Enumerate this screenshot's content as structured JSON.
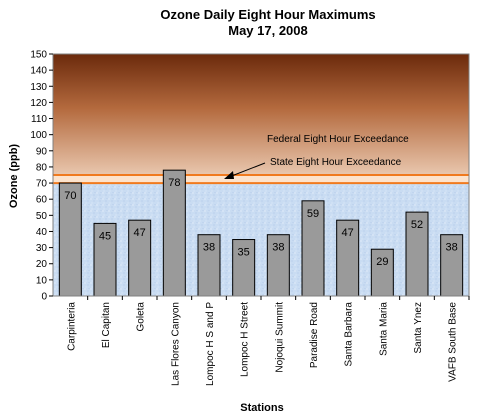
{
  "chart_data": {
    "type": "bar",
    "title": "Ozone Daily Eight Hour Maximums",
    "subtitle": "May 17, 2008",
    "xlabel": "Stations",
    "ylabel": "Ozone (ppb)",
    "ylim": [
      0,
      150
    ],
    "ytick_step": 10,
    "categories": [
      "Carpinteria",
      "El Capitan",
      "Goleta",
      "Las Flores Canyon",
      "Lompoc H S and P",
      "Lompoc H Street",
      "Nojoqui Summit",
      "Paradise Road",
      "Santa Barbara",
      "Santa Maria",
      "Santa Ynez",
      "VAFB South Base"
    ],
    "values": [
      70,
      45,
      47,
      78,
      38,
      35,
      38,
      59,
      47,
      29,
      52,
      38
    ],
    "thresholds": [
      {
        "label": "Federal Eight Hour Exceedance",
        "value": 75
      },
      {
        "label": "State Eight Hour Exceedance",
        "value": 70
      }
    ],
    "colors": {
      "bar": "#9a9a9a",
      "bar_edge": "#000000",
      "below_standard_bg": "#c9dcf2",
      "exceedance_top": "#6b2a0c",
      "exceedance_bottom": "#e9c7ae",
      "band_fill": "#fde3cc",
      "threshold_line": "#f07a1e"
    },
    "grid": false,
    "legend": "none"
  }
}
